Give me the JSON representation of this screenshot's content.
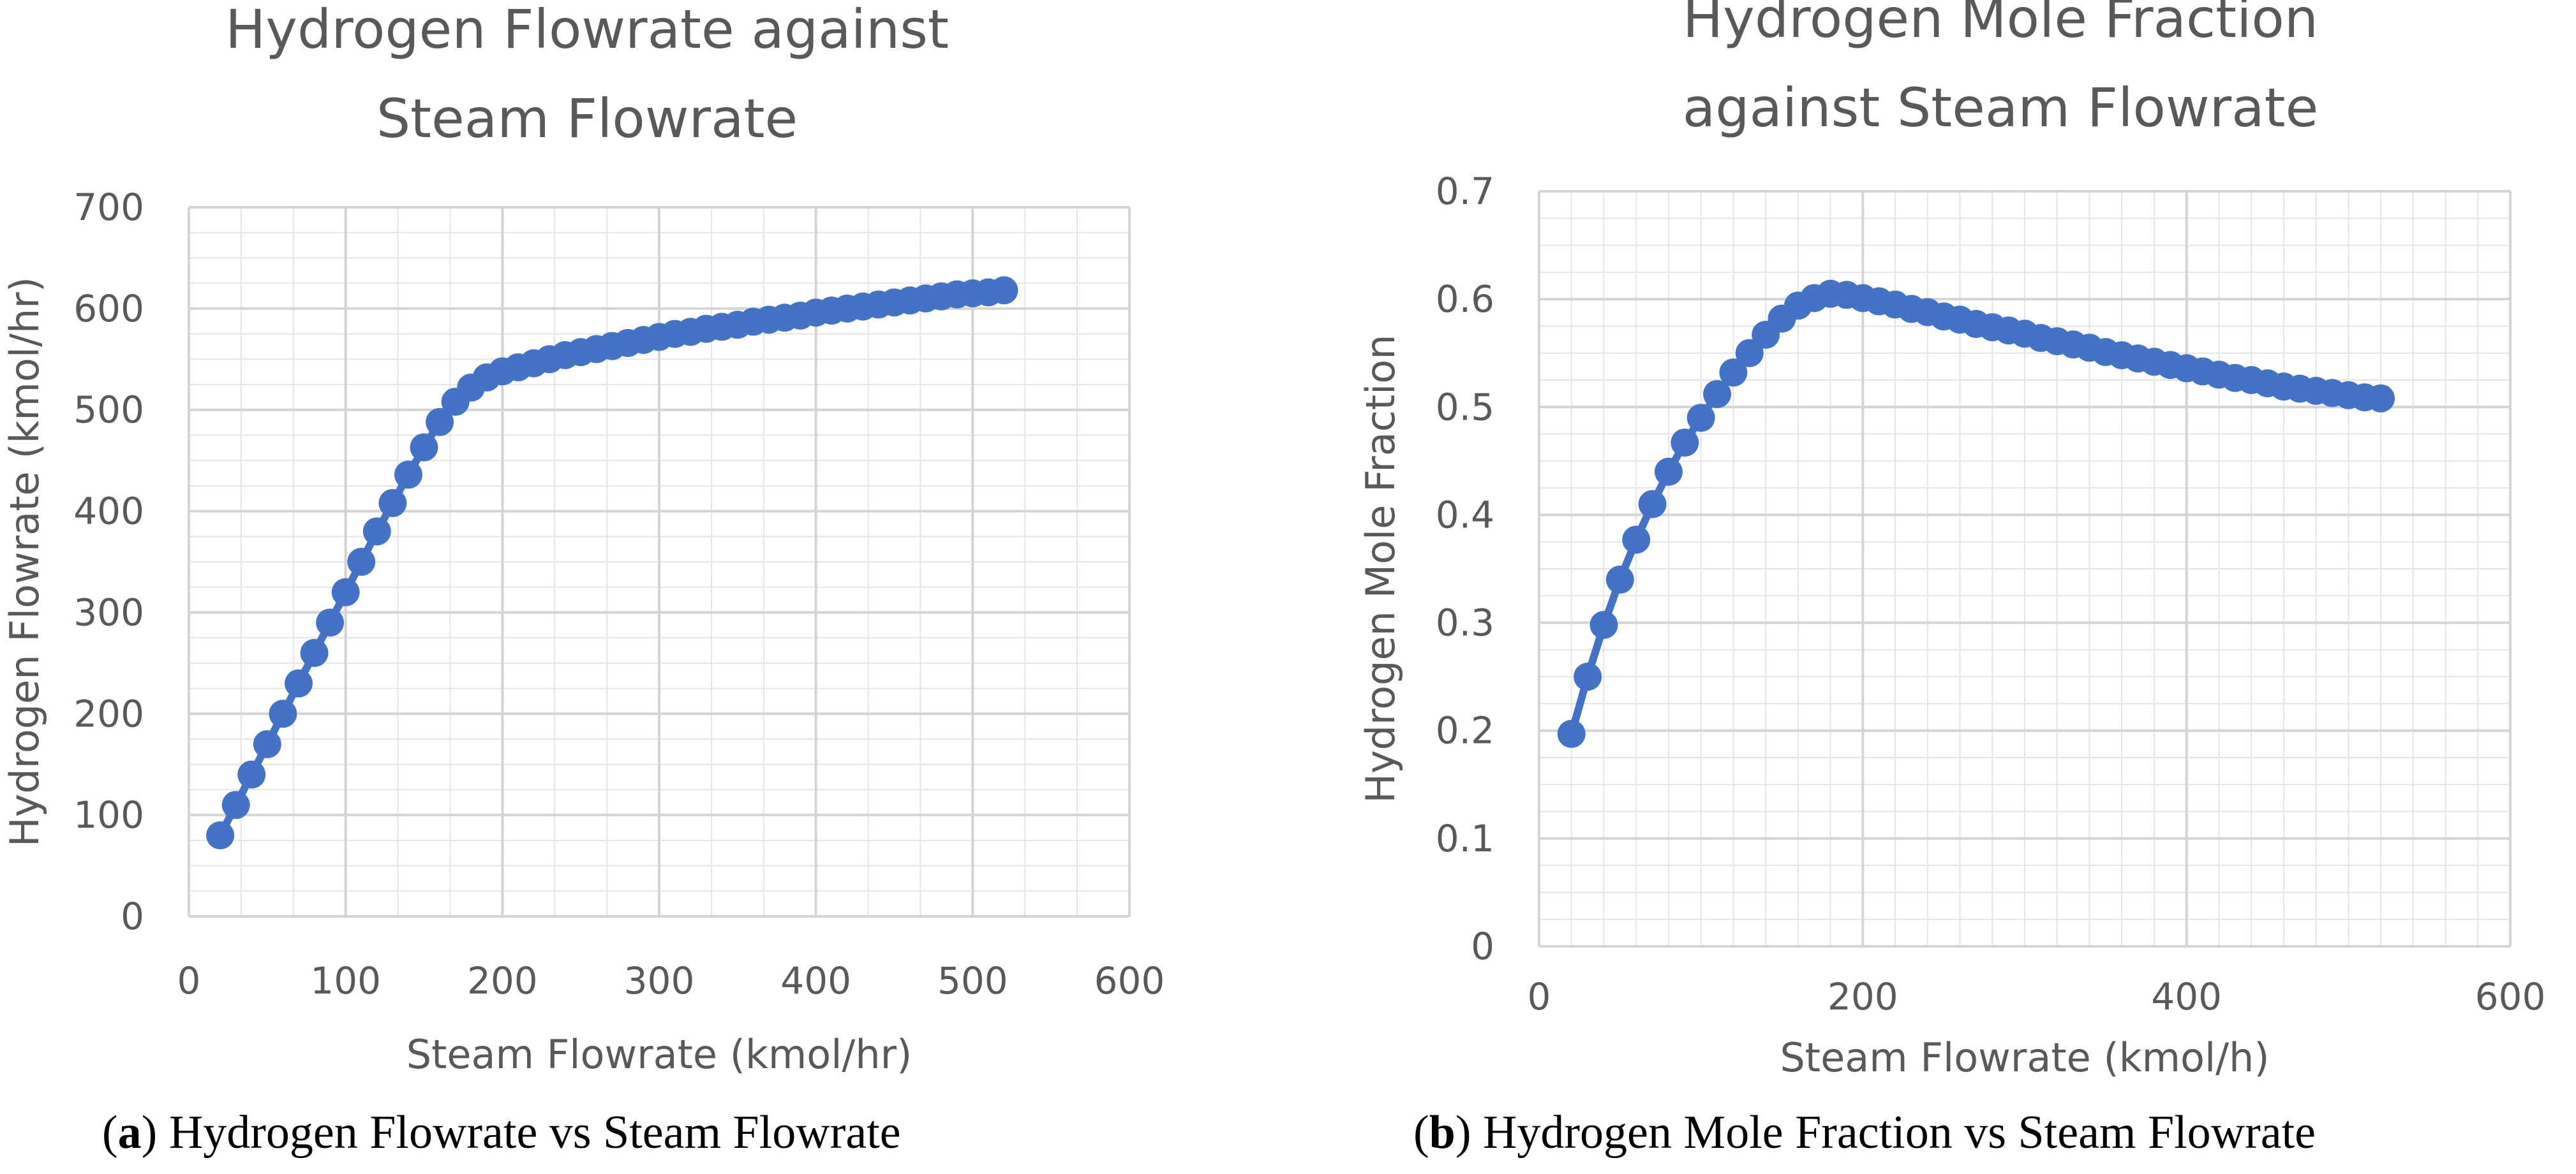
{
  "colors": {
    "series": "#4472c4",
    "text": "#595959",
    "grid": "#d9d9d9"
  },
  "chart_data": [
    {
      "type": "line",
      "title": [
        "Hydrogen Flowrate against",
        "Steam Flowrate"
      ],
      "xlabel": "Steam Flowrate (kmol/hr)",
      "ylabel": "Hydrogen Flowrate (kmol/hr)",
      "xlim": [
        0,
        600
      ],
      "ylim": [
        0,
        700
      ],
      "xticks": [
        "0",
        "100",
        "200",
        "300",
        "400",
        "500",
        "600"
      ],
      "yticks": [
        "0",
        "100",
        "200",
        "300",
        "400",
        "500",
        "600",
        "700"
      ],
      "grid": true,
      "caption_letter": "a",
      "caption_text": "Hydrogen Flowrate vs Steam Flowrate",
      "series": [
        {
          "name": "Hydrogen Flowrate",
          "x": [
            20,
            30,
            40,
            50,
            60,
            70,
            80,
            90,
            100,
            110,
            120,
            130,
            140,
            150,
            160,
            170,
            180,
            190,
            200,
            210,
            220,
            230,
            240,
            250,
            260,
            270,
            280,
            290,
            300,
            310,
            320,
            330,
            340,
            350,
            360,
            370,
            380,
            390,
            400,
            410,
            420,
            430,
            440,
            450,
            460,
            470,
            480,
            490,
            500,
            510,
            520
          ],
          "y": [
            80,
            110,
            140,
            170,
            200,
            230,
            260,
            290,
            320,
            350,
            380,
            408,
            436,
            463,
            488,
            508,
            522,
            532,
            538,
            542,
            546,
            550,
            554,
            557,
            560,
            563,
            566,
            569,
            572,
            575,
            577,
            580,
            582,
            584,
            587,
            589,
            591,
            593,
            596,
            598,
            600,
            602,
            604,
            606,
            608,
            610,
            612,
            614,
            615,
            616,
            618
          ]
        }
      ]
    },
    {
      "type": "line",
      "title": [
        "Hydrogen Mole Fraction",
        "against Steam Flowrate"
      ],
      "xlabel": "Steam Flowrate (kmol/h)",
      "ylabel": "Hydrogen Mole Fraction",
      "xlim": [
        0,
        600
      ],
      "ylim": [
        0,
        0.7
      ],
      "xticks": [
        "0",
        "200",
        "400",
        "600"
      ],
      "yticks": [
        "0",
        "0.1",
        "0.2",
        "0.3",
        "0.4",
        "0.5",
        "0.6",
        "0.7"
      ],
      "grid": true,
      "caption_letter": "b",
      "caption_text": "Hydrogen Mole Fraction vs Steam Flowrate",
      "series": [
        {
          "name": "Hydrogen Mole Fraction",
          "x": [
            20,
            30,
            40,
            50,
            60,
            70,
            80,
            90,
            100,
            110,
            120,
            130,
            140,
            150,
            160,
            170,
            180,
            190,
            200,
            210,
            220,
            230,
            240,
            250,
            260,
            270,
            280,
            290,
            300,
            310,
            320,
            330,
            340,
            350,
            360,
            370,
            380,
            390,
            400,
            410,
            420,
            430,
            440,
            450,
            460,
            470,
            480,
            490,
            500,
            510,
            520
          ],
          "y": [
            0.197,
            0.25,
            0.298,
            0.34,
            0.377,
            0.41,
            0.44,
            0.467,
            0.49,
            0.512,
            0.532,
            0.55,
            0.567,
            0.582,
            0.594,
            0.601,
            0.605,
            0.604,
            0.601,
            0.598,
            0.595,
            0.591,
            0.588,
            0.584,
            0.581,
            0.577,
            0.574,
            0.571,
            0.568,
            0.564,
            0.561,
            0.558,
            0.555,
            0.551,
            0.548,
            0.545,
            0.542,
            0.539,
            0.536,
            0.533,
            0.53,
            0.527,
            0.525,
            0.522,
            0.519,
            0.517,
            0.515,
            0.513,
            0.511,
            0.509,
            0.508
          ]
        }
      ]
    }
  ]
}
